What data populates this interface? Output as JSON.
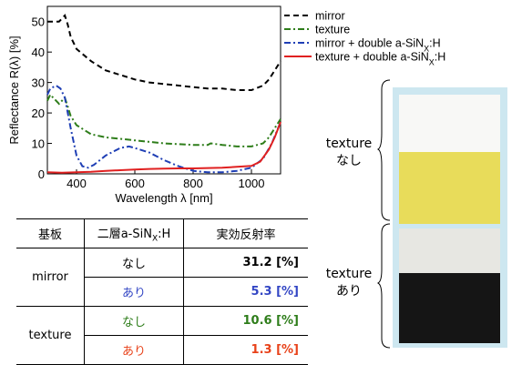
{
  "chart_data": {
    "type": "line",
    "xlabel": "Wavelength λ [nm]",
    "ylabel": "Reflectance R(λ) [%]",
    "xlim": [
      300,
      1100
    ],
    "ylim": [
      0,
      55
    ],
    "xticks": [
      400,
      600,
      800,
      1000
    ],
    "yticks": [
      0,
      10,
      20,
      30,
      40,
      50
    ],
    "grid": false,
    "legend_position": "right, outside plot",
    "series": [
      {
        "name": "mirror",
        "color": "#000000",
        "dash": "6,4",
        "x": [
          300,
          320,
          340,
          360,
          370,
          380,
          400,
          450,
          500,
          550,
          600,
          650,
          700,
          750,
          800,
          850,
          900,
          950,
          1000,
          1040,
          1060,
          1080,
          1100
        ],
        "y": [
          50,
          50,
          50,
          52,
          49,
          45,
          41,
          37,
          34,
          32.5,
          31,
          30,
          29.5,
          29,
          28.5,
          28,
          28,
          27.5,
          27.5,
          29,
          31,
          34,
          37
        ]
      },
      {
        "name": "texture",
        "color": "#2e7d1a",
        "dash": "7,3,2,3",
        "x": [
          300,
          310,
          320,
          330,
          340,
          350,
          360,
          380,
          400,
          450,
          500,
          550,
          600,
          700,
          800,
          850,
          860,
          900,
          950,
          1000,
          1040,
          1060,
          1080,
          1100
        ],
        "y": [
          24,
          26,
          25,
          24,
          23,
          24,
          25,
          19,
          16,
          13,
          12,
          11.5,
          11,
          10,
          9.5,
          9.5,
          10,
          9.5,
          9,
          9,
          10,
          12,
          15,
          18
        ]
      },
      {
        "name": "mirror + double a-SiN_X:H",
        "sub": "X",
        "color": "#1f3fb5",
        "dash": "7,3,2,3",
        "x": [
          300,
          310,
          330,
          345,
          360,
          380,
          400,
          420,
          440,
          460,
          500,
          550,
          580,
          600,
          650,
          700,
          750,
          800,
          850,
          900,
          950,
          1000,
          1040,
          1070,
          1100
        ],
        "y": [
          26,
          28,
          29,
          28,
          25,
          15,
          6,
          2.5,
          2,
          3,
          6,
          8.5,
          9,
          8.5,
          7,
          4.5,
          2.5,
          1,
          0.5,
          0.5,
          1,
          2,
          5,
          10,
          17
        ]
      },
      {
        "name": "texture + double a-SiN_X:H",
        "sub": "X",
        "color": "#e02020",
        "dash": "",
        "x": [
          300,
          350,
          400,
          450,
          500,
          550,
          600,
          650,
          700,
          750,
          800,
          850,
          900,
          950,
          1000,
          1030,
          1060,
          1080,
          1100
        ],
        "y": [
          0.5,
          0.4,
          0.5,
          0.7,
          1,
          1.2,
          1.4,
          1.6,
          1.7,
          1.8,
          1.8,
          1.9,
          2,
          2.3,
          2.6,
          4,
          8,
          12,
          17
        ]
      }
    ]
  },
  "table": {
    "headers": [
      "基板",
      "二層a-SiN_X:H",
      "実効反射率"
    ],
    "header_sub": "X",
    "rows": [
      {
        "substrate": "mirror",
        "coating": "なし",
        "value": "31.2 [%]",
        "color": "#000000"
      },
      {
        "coating": "あり",
        "value": "5.3 [%]",
        "color": "#3346c4"
      },
      {
        "substrate": "texture",
        "coating": "なし",
        "value": "10.6 [%]",
        "color": "#2e7d1a"
      },
      {
        "coating": "あり",
        "value": "1.3 [%]",
        "color": "#e8421a"
      }
    ]
  },
  "photo_panel": {
    "groups": [
      {
        "label_line1": "texture",
        "label_line2": "なし"
      },
      {
        "label_line1": "texture",
        "label_line2": "あり"
      }
    ],
    "swatch_colors": [
      "#f8f8f6",
      "#e8dc5a",
      "#e7e7e2",
      "#151515"
    ]
  }
}
